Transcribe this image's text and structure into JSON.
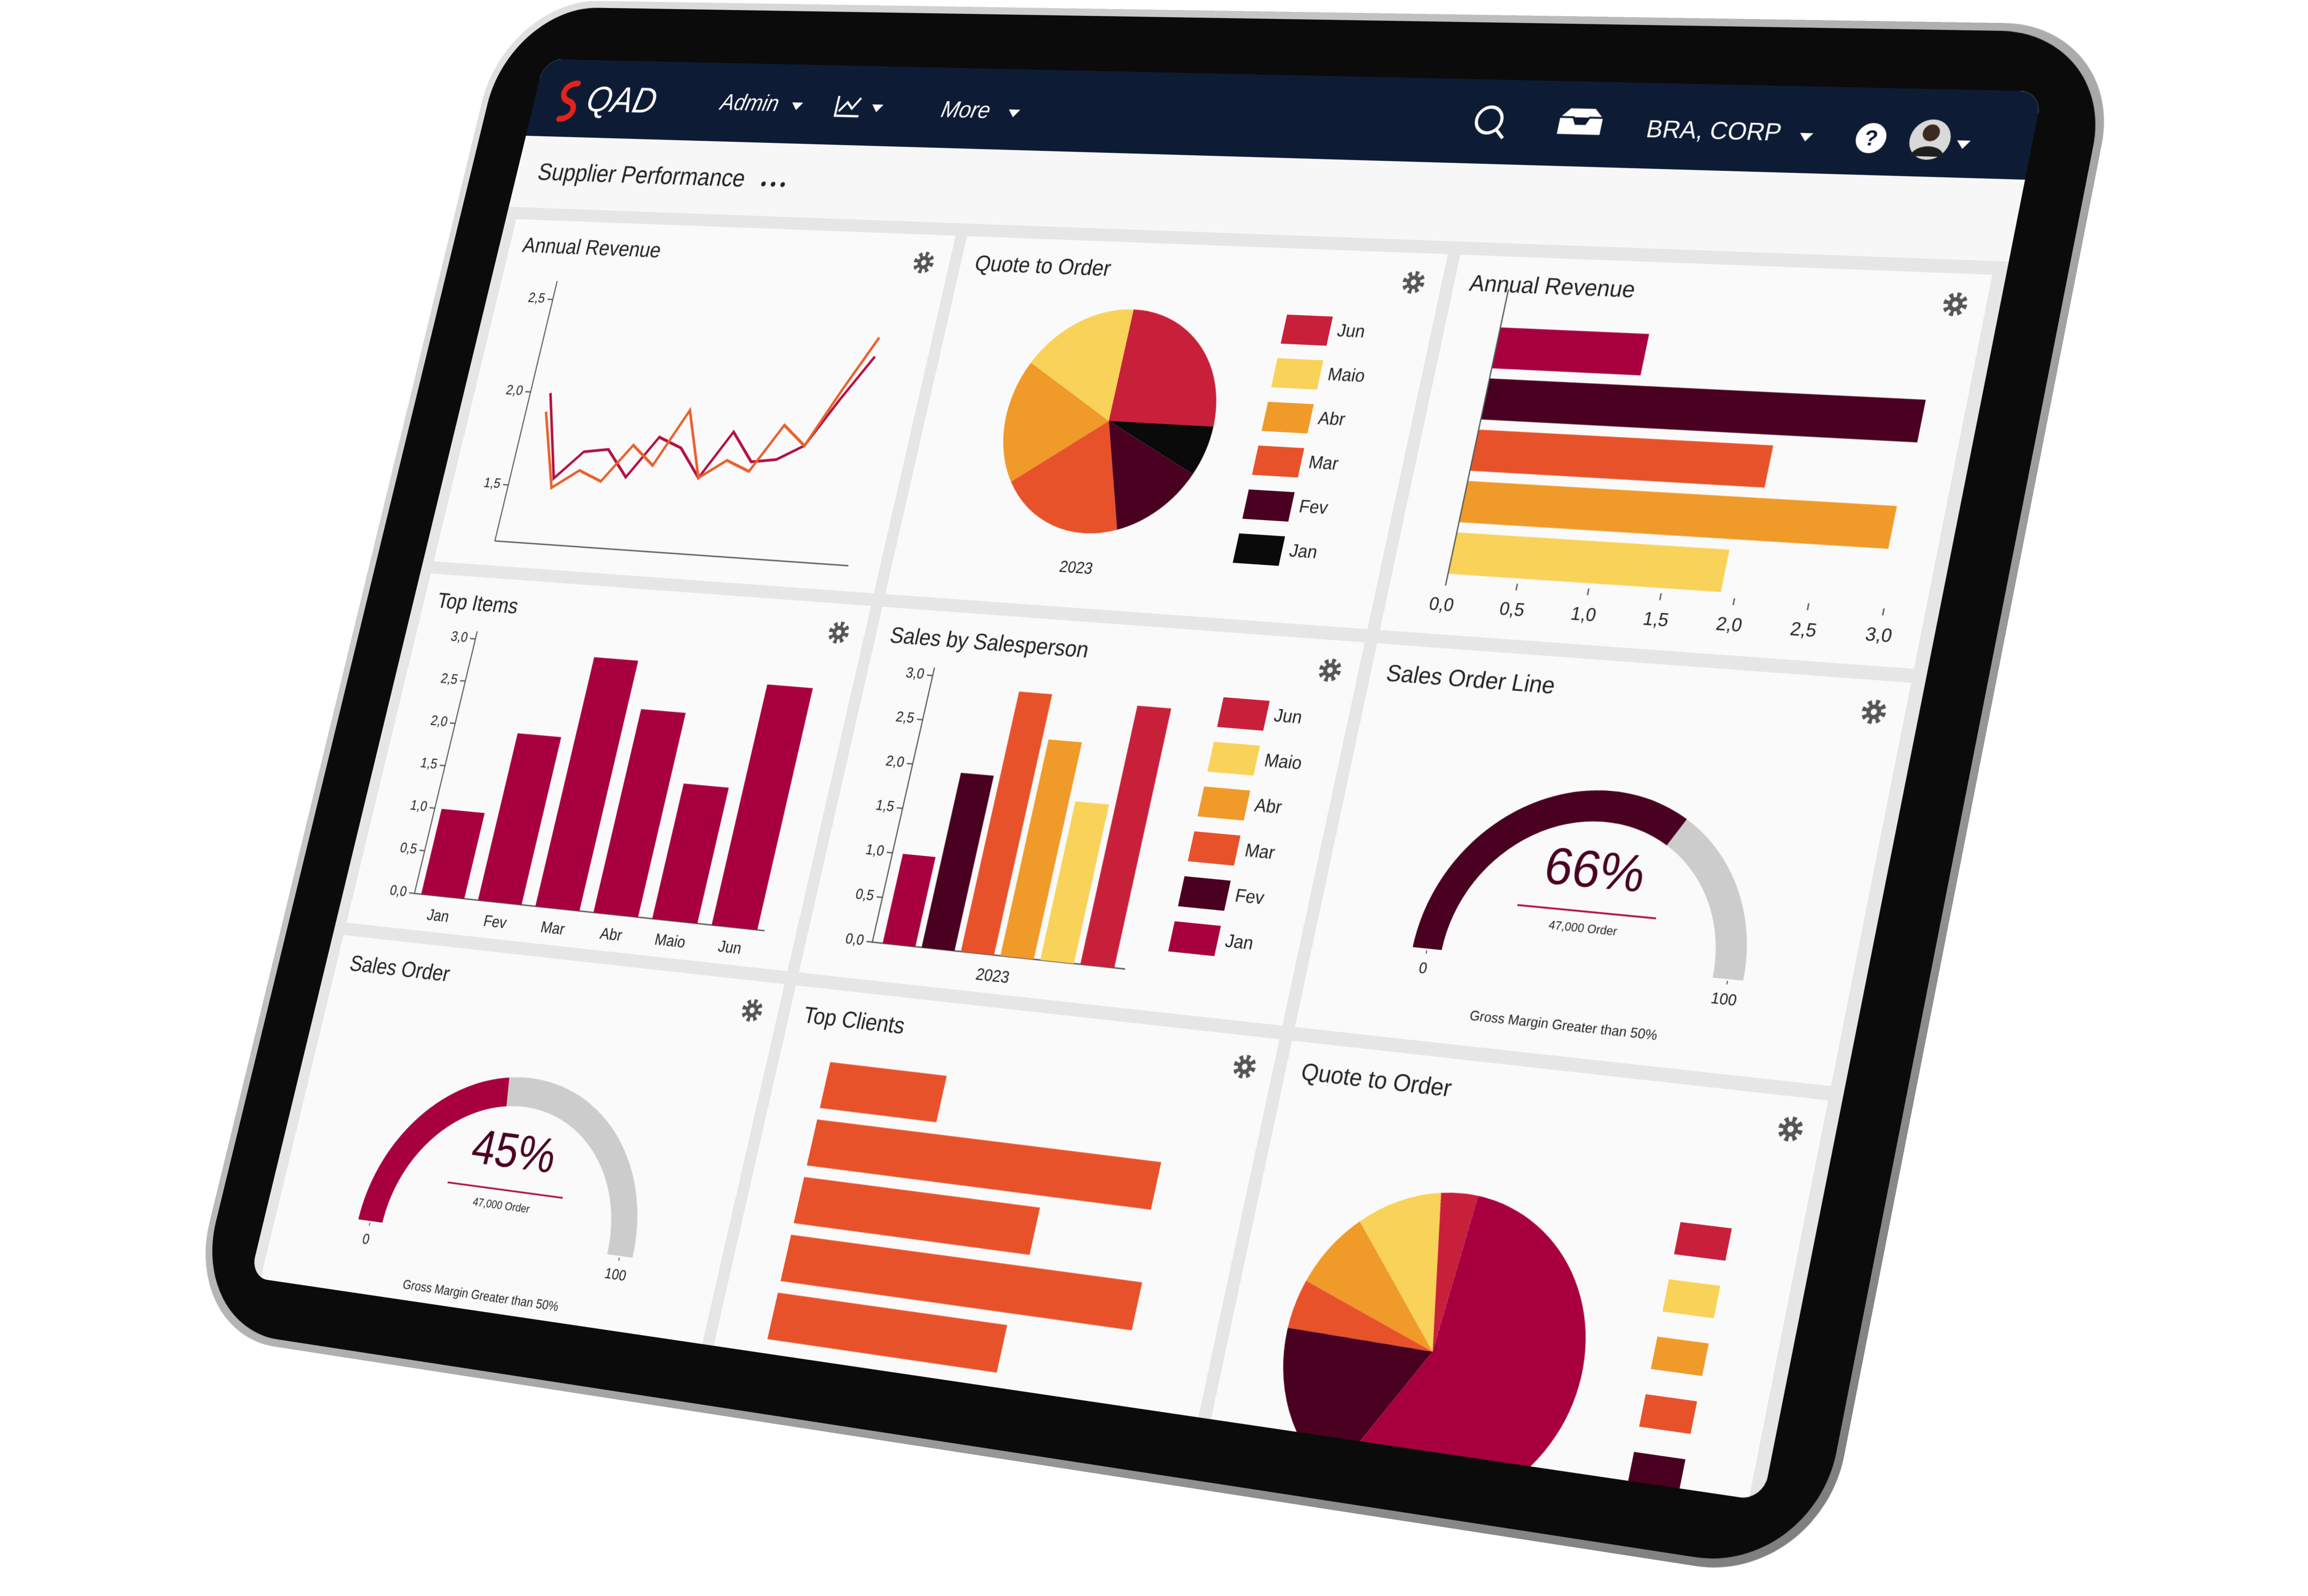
{
  "nav": {
    "logo": "QAD",
    "items": [
      "Admin",
      "More"
    ],
    "company": "BRA, CORP",
    "help": "?"
  },
  "page_title": "Supplier Performance",
  "chart_data": [
    {
      "type": "line",
      "title": "Annual Revenue",
      "categories": [
        null,
        null,
        null,
        null,
        null,
        null,
        null,
        null,
        null,
        null,
        null,
        null,
        null,
        null
      ],
      "series": [
        {
          "color": "#b0103f",
          "values": [
            2.0,
            1.55,
            1.7,
            1.72,
            1.58,
            1.8,
            1.75,
            1.6,
            1.85,
            1.7,
            1.72,
            1.8,
            2.05,
            2.28
          ]
        },
        {
          "color": "#e8602c",
          "values": [
            1.9,
            1.5,
            1.6,
            1.55,
            1.75,
            1.65,
            1.95,
            1.6,
            1.7,
            1.65,
            1.9,
            1.8,
            2.1,
            2.38
          ]
        }
      ],
      "ylim": [
        1.2,
        2.6
      ],
      "yticks": [
        {
          "value": 1.5,
          "label": "1,5"
        },
        {
          "value": 2,
          "label": "2,0"
        },
        {
          "value": 2.5,
          "label": "2,5"
        }
      ]
    },
    {
      "type": "pie",
      "title": "Quote to Order",
      "subtitle": "2023",
      "categories": [
        "Jun",
        "Maio",
        "Abr",
        "Mar",
        "Fev",
        "Jan"
      ],
      "values": [
        25,
        17,
        18,
        20,
        13,
        7
      ],
      "colors": [
        "#c8203a",
        "#f9d25a",
        "#f09a2a",
        "#e8522a",
        "#4a0020",
        "#0a0a0a"
      ]
    },
    {
      "type": "bar",
      "horizontal": true,
      "title": "Annual Revenue",
      "categories": [
        null,
        null,
        null,
        null,
        null
      ],
      "values": [
        1.05,
        3.0,
        2.05,
        2.95,
        1.9
      ],
      "colors": [
        "#a8003f",
        "#4a0020",
        "#e8522a",
        "#f09a2a",
        "#f9d25a"
      ],
      "xlim": [
        0,
        3
      ],
      "xticks": [
        {
          "value": 0,
          "label": "0,0"
        },
        {
          "value": 0.5,
          "label": "0,5"
        },
        {
          "value": 1,
          "label": "1,0"
        },
        {
          "value": 1.5,
          "label": "1,5"
        },
        {
          "value": 2,
          "label": "2,0"
        },
        {
          "value": 2.5,
          "label": "2,5"
        },
        {
          "value": 3,
          "label": "3,0"
        }
      ]
    },
    {
      "type": "bar",
      "title": "Top Items",
      "categories": [
        "Jan",
        "Fev",
        "Mar",
        "Abr",
        "Maio",
        "Jun"
      ],
      "values": [
        1.0,
        1.95,
        2.9,
        2.35,
        1.55,
        2.75
      ],
      "color": "#a8003f",
      "ylim": [
        0,
        3
      ],
      "yticks": [
        {
          "value": 0,
          "label": "0,0"
        },
        {
          "value": 0.5,
          "label": "0,5"
        },
        {
          "value": 1,
          "label": "1,0"
        },
        {
          "value": 1.5,
          "label": "1,5"
        },
        {
          "value": 2,
          "label": "2,0"
        },
        {
          "value": 2.5,
          "label": "2,5"
        },
        {
          "value": 3,
          "label": "3,0"
        }
      ]
    },
    {
      "type": "bar",
      "title": "Sales by Salesperson",
      "categories": [
        "2023"
      ],
      "series": [
        {
          "name": "Jun",
          "color": "#c8203a",
          "values": [
            2.85
          ]
        },
        {
          "name": "Maio",
          "color": "#f9d25a",
          "values": [
            1.75
          ]
        },
        {
          "name": "Abr",
          "color": "#f09a2a",
          "values": [
            2.4
          ]
        },
        {
          "name": "Mar",
          "color": "#e8522a",
          "values": [
            2.9
          ]
        },
        {
          "name": "Fev",
          "color": "#4a0020",
          "values": [
            1.95
          ]
        },
        {
          "name": "Jan",
          "color": "#a8003f",
          "values": [
            1.0
          ]
        }
      ],
      "ylim": [
        0,
        3
      ],
      "yticks": [
        {
          "value": 0,
          "label": "0,0"
        },
        {
          "value": 0.5,
          "label": "0,5"
        },
        {
          "value": 1,
          "label": "1,0"
        },
        {
          "value": 1.5,
          "label": "1,5"
        },
        {
          "value": 2,
          "label": "2,0"
        },
        {
          "value": 2.5,
          "label": "2,5"
        },
        {
          "value": 3,
          "label": "3,0"
        }
      ]
    },
    {
      "type": "gauge",
      "title": "Sales Order Line",
      "values": [
        66
      ],
      "value_labels": [
        "66%"
      ],
      "subtitle": "47,000 Order",
      "caption": "Gross Margin Greater than 50%",
      "ylim": [
        0,
        100
      ],
      "yticks": [
        0,
        100
      ],
      "color": "#4a0020",
      "track_color": "#cccccc"
    },
    {
      "type": "gauge",
      "title": "Sales Order",
      "values": [
        45
      ],
      "value_labels": [
        "45%"
      ],
      "subtitle": "47,000 Order",
      "caption": "Gross Margin Greater than 50%",
      "ylim": [
        0,
        100
      ],
      "yticks": [
        0,
        100
      ],
      "color": "#a8003f",
      "track_color": "#cccccc"
    },
    {
      "type": "bar",
      "horizontal": true,
      "title": "Top Clients",
      "categories": [
        null,
        null,
        null,
        null,
        null
      ],
      "values": [
        0.9,
        2.6,
        1.8,
        2.65,
        1.75
      ],
      "color": "#e8522a",
      "xlim": [
        0,
        3
      ]
    },
    {
      "type": "pie",
      "title": "Quote to Order",
      "categories": [
        null,
        null,
        null,
        null,
        null,
        null
      ],
      "values": [
        4,
        9,
        8,
        5,
        17,
        57
      ],
      "colors": [
        "#c8203a",
        "#f9d25a",
        "#f09a2a",
        "#e8522a",
        "#4a0020",
        "#a8003f"
      ]
    }
  ]
}
